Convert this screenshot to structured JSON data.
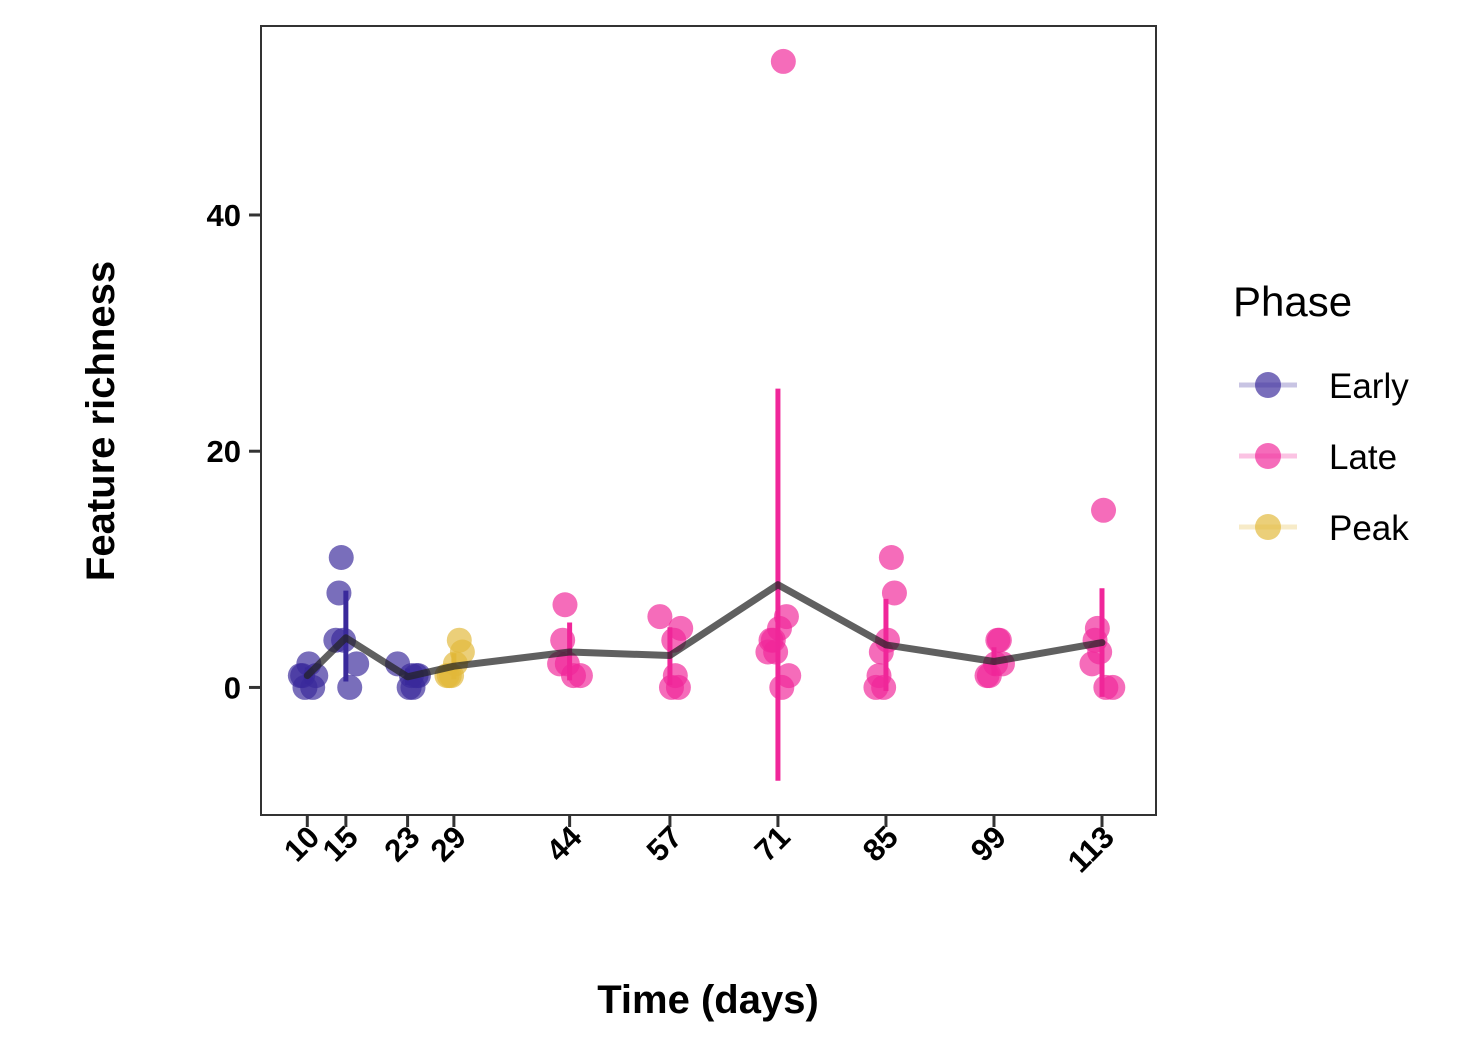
{
  "chart_data": {
    "type": "scatter",
    "title": "",
    "xlabel": "Time (days)",
    "ylabel": "Feature richness",
    "x_ticks": [
      10,
      15,
      23,
      29,
      44,
      57,
      71,
      85,
      99,
      113
    ],
    "y_ticks": [
      0,
      20,
      40
    ],
    "xlim": [
      4,
      120
    ],
    "ylim": [
      -10.8,
      56
    ],
    "grid": false,
    "legend": {
      "title": "Phase",
      "position": "right",
      "entries": [
        "Early",
        "Late",
        "Peak"
      ]
    },
    "colors": {
      "Early": "#3A2A9B",
      "Late": "#F0279A",
      "Peak": "#E2B83A",
      "mean_line": "#222222"
    },
    "points": {
      "Early": [
        {
          "x": 10,
          "y": 0
        },
        {
          "x": 10,
          "y": 1
        },
        {
          "x": 10,
          "y": 2
        },
        {
          "x": 10,
          "y": 1
        },
        {
          "x": 10,
          "y": 1
        },
        {
          "x": 10,
          "y": 0
        },
        {
          "x": 15,
          "y": 11
        },
        {
          "x": 15,
          "y": 8
        },
        {
          "x": 15,
          "y": 4
        },
        {
          "x": 15,
          "y": 4
        },
        {
          "x": 15,
          "y": 2
        },
        {
          "x": 15,
          "y": 0
        },
        {
          "x": 23,
          "y": 2
        },
        {
          "x": 23,
          "y": 1
        },
        {
          "x": 23,
          "y": 1
        },
        {
          "x": 23,
          "y": 0
        },
        {
          "x": 23,
          "y": 1
        },
        {
          "x": 23,
          "y": 0
        }
      ],
      "Peak": [
        {
          "x": 29,
          "y": 4
        },
        {
          "x": 29,
          "y": 3
        },
        {
          "x": 29,
          "y": 2
        },
        {
          "x": 29,
          "y": 1
        },
        {
          "x": 29,
          "y": 1
        },
        {
          "x": 29,
          "y": 1
        }
      ],
      "Late": [
        {
          "x": 44,
          "y": 7
        },
        {
          "x": 44,
          "y": 4
        },
        {
          "x": 44,
          "y": 2
        },
        {
          "x": 44,
          "y": 2
        },
        {
          "x": 44,
          "y": 1
        },
        {
          "x": 44,
          "y": 1
        },
        {
          "x": 57,
          "y": 6
        },
        {
          "x": 57,
          "y": 5
        },
        {
          "x": 57,
          "y": 4
        },
        {
          "x": 57,
          "y": 1
        },
        {
          "x": 57,
          "y": 0
        },
        {
          "x": 57,
          "y": 0
        },
        {
          "x": 71,
          "y": 53
        },
        {
          "x": 71,
          "y": 6
        },
        {
          "x": 71,
          "y": 5
        },
        {
          "x": 71,
          "y": 4
        },
        {
          "x": 71,
          "y": 4
        },
        {
          "x": 71,
          "y": 3
        },
        {
          "x": 71,
          "y": 3
        },
        {
          "x": 71,
          "y": 1
        },
        {
          "x": 71,
          "y": 0
        },
        {
          "x": 85,
          "y": 11
        },
        {
          "x": 85,
          "y": 8
        },
        {
          "x": 85,
          "y": 4
        },
        {
          "x": 85,
          "y": 3
        },
        {
          "x": 85,
          "y": 1
        },
        {
          "x": 85,
          "y": 0
        },
        {
          "x": 85,
          "y": 0
        },
        {
          "x": 99,
          "y": 4
        },
        {
          "x": 99,
          "y": 4
        },
        {
          "x": 99,
          "y": 2
        },
        {
          "x": 99,
          "y": 2
        },
        {
          "x": 99,
          "y": 1
        },
        {
          "x": 99,
          "y": 1
        },
        {
          "x": 113,
          "y": 15
        },
        {
          "x": 113,
          "y": 5
        },
        {
          "x": 113,
          "y": 4
        },
        {
          "x": 113,
          "y": 3
        },
        {
          "x": 113,
          "y": 2
        },
        {
          "x": 113,
          "y": 0
        },
        {
          "x": 113,
          "y": 0
        }
      ]
    },
    "mean_line": [
      {
        "x": 10,
        "y": 1.0
      },
      {
        "x": 15,
        "y": 4.2
      },
      {
        "x": 23,
        "y": 0.9
      },
      {
        "x": 29,
        "y": 1.8
      },
      {
        "x": 44,
        "y": 3.0
      },
      {
        "x": 57,
        "y": 2.7
      },
      {
        "x": 71,
        "y": 8.7
      },
      {
        "x": 85,
        "y": 3.6
      },
      {
        "x": 99,
        "y": 2.2
      },
      {
        "x": 113,
        "y": 3.8
      }
    ],
    "error_bars": [
      {
        "x": 10,
        "phase": "Early",
        "low": 0.3,
        "high": 1.7
      },
      {
        "x": 15,
        "phase": "Early",
        "low": 0.5,
        "high": 8.2
      },
      {
        "x": 23,
        "phase": "Early",
        "low": 0.2,
        "high": 1.6
      },
      {
        "x": 29,
        "phase": "Peak",
        "low": 0.7,
        "high": 2.9
      },
      {
        "x": 44,
        "phase": "Late",
        "low": 0.6,
        "high": 5.5
      },
      {
        "x": 57,
        "phase": "Late",
        "low": 0.2,
        "high": 5.1
      },
      {
        "x": 71,
        "phase": "Late",
        "low": -7.9,
        "high": 25.3
      },
      {
        "x": 85,
        "phase": "Late",
        "low": -0.3,
        "high": 7.5
      },
      {
        "x": 99,
        "phase": "Late",
        "low": 1.0,
        "high": 3.4
      },
      {
        "x": 113,
        "phase": "Late",
        "low": -0.8,
        "high": 8.4
      }
    ]
  }
}
